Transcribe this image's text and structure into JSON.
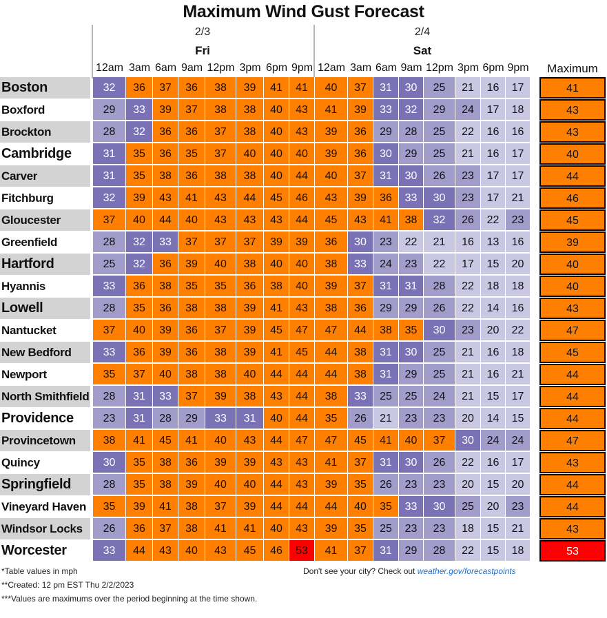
{
  "title": "Maximum Wind Gust Forecast",
  "days": [
    {
      "date": "2/3",
      "dow": "Fri"
    },
    {
      "date": "2/4",
      "dow": "Sat"
    }
  ],
  "hours": [
    "12am",
    "3am",
    "6am",
    "9am",
    "12pm",
    "3pm",
    "6pm",
    "9pm",
    "12am",
    "3am",
    "6am",
    "9am",
    "12pm",
    "3pm",
    "6pm",
    "9pm"
  ],
  "max_header": "Maximum",
  "colors": {
    "orange": "#ff7f00",
    "red": "#ff0000",
    "purple_dark": "#7b72b5",
    "purple_mid": "#a29cca",
    "purple_light": "#cac7e2",
    "city_shade": "#d3d3d3"
  },
  "chart_data": {
    "type": "table",
    "title": "Maximum Wind Gust Forecast",
    "units": "mph",
    "columns": [
      "2/3 12am",
      "2/3 3am",
      "2/3 6am",
      "2/3 9am",
      "2/3 12pm",
      "2/3 3pm",
      "2/3 6pm",
      "2/3 9pm",
      "2/4 12am",
      "2/4 3am",
      "2/4 6am",
      "2/4 9am",
      "2/4 12pm",
      "2/4 3pm",
      "2/4 6pm",
      "2/4 9pm"
    ],
    "rows": [
      {
        "city": "Boston",
        "values": [
          32,
          36,
          37,
          36,
          38,
          39,
          41,
          41,
          40,
          37,
          31,
          30,
          25,
          21,
          16,
          17
        ],
        "max": 41
      },
      {
        "city": "Boxford",
        "values": [
          29,
          33,
          39,
          37,
          38,
          38,
          40,
          43,
          41,
          39,
          33,
          32,
          29,
          24,
          17,
          18
        ],
        "max": 43
      },
      {
        "city": "Brockton",
        "values": [
          28,
          32,
          36,
          36,
          37,
          38,
          40,
          43,
          39,
          36,
          29,
          28,
          25,
          22,
          16,
          16
        ],
        "max": 43
      },
      {
        "city": "Cambridge",
        "values": [
          31,
          35,
          36,
          35,
          37,
          40,
          40,
          40,
          39,
          36,
          30,
          29,
          25,
          21,
          16,
          17
        ],
        "max": 40
      },
      {
        "city": "Carver",
        "values": [
          31,
          35,
          38,
          36,
          38,
          38,
          40,
          44,
          40,
          37,
          31,
          30,
          26,
          23,
          17,
          17
        ],
        "max": 44
      },
      {
        "city": "Fitchburg",
        "values": [
          32,
          39,
          43,
          41,
          43,
          44,
          45,
          46,
          43,
          39,
          36,
          33,
          30,
          23,
          17,
          21
        ],
        "max": 46
      },
      {
        "city": "Gloucester",
        "values": [
          37,
          40,
          44,
          40,
          43,
          43,
          43,
          44,
          45,
          43,
          41,
          38,
          32,
          26,
          22,
          23
        ],
        "max": 45
      },
      {
        "city": "Greenfield",
        "values": [
          28,
          32,
          33,
          37,
          37,
          37,
          39,
          39,
          36,
          30,
          23,
          22,
          21,
          16,
          13,
          16
        ],
        "max": 39
      },
      {
        "city": "Hartford",
        "values": [
          25,
          32,
          36,
          39,
          40,
          38,
          40,
          40,
          38,
          33,
          24,
          23,
          22,
          17,
          15,
          20
        ],
        "max": 40
      },
      {
        "city": "Hyannis",
        "values": [
          33,
          36,
          38,
          35,
          35,
          36,
          38,
          40,
          39,
          37,
          31,
          31,
          28,
          22,
          18,
          18
        ],
        "max": 40
      },
      {
        "city": "Lowell",
        "values": [
          28,
          35,
          36,
          38,
          38,
          39,
          41,
          43,
          38,
          36,
          29,
          29,
          26,
          22,
          14,
          16
        ],
        "max": 43
      },
      {
        "city": "Nantucket",
        "values": [
          37,
          40,
          39,
          36,
          37,
          39,
          45,
          47,
          47,
          44,
          38,
          35,
          30,
          23,
          20,
          22
        ],
        "max": 47
      },
      {
        "city": "New Bedford",
        "values": [
          33,
          36,
          39,
          36,
          38,
          39,
          41,
          45,
          44,
          38,
          31,
          30,
          25,
          21,
          16,
          18
        ],
        "max": 45
      },
      {
        "city": "Newport",
        "values": [
          35,
          37,
          40,
          38,
          38,
          40,
          44,
          44,
          44,
          38,
          31,
          29,
          25,
          21,
          16,
          21
        ],
        "max": 44
      },
      {
        "city": "North Smithfield",
        "values": [
          28,
          31,
          33,
          37,
          39,
          38,
          43,
          44,
          38,
          33,
          25,
          25,
          24,
          21,
          15,
          17
        ],
        "max": 44
      },
      {
        "city": "Providence",
        "values": [
          23,
          31,
          28,
          29,
          33,
          31,
          40,
          44,
          35,
          26,
          21,
          23,
          23,
          20,
          14,
          15
        ],
        "max": 44
      },
      {
        "city": "Provincetown",
        "values": [
          38,
          41,
          45,
          41,
          40,
          43,
          44,
          47,
          47,
          45,
          41,
          40,
          37,
          30,
          24,
          24
        ],
        "max": 47
      },
      {
        "city": "Quincy",
        "values": [
          30,
          35,
          38,
          36,
          39,
          39,
          43,
          43,
          41,
          37,
          31,
          30,
          26,
          22,
          16,
          17
        ],
        "max": 43
      },
      {
        "city": "Springfield",
        "values": [
          28,
          35,
          38,
          39,
          40,
          40,
          44,
          43,
          39,
          35,
          26,
          23,
          23,
          20,
          15,
          20
        ],
        "max": 44
      },
      {
        "city": "Vineyard Haven",
        "values": [
          35,
          39,
          41,
          38,
          37,
          39,
          44,
          44,
          44,
          40,
          35,
          33,
          30,
          25,
          20,
          23
        ],
        "max": 44
      },
      {
        "city": "Windsor Locks",
        "values": [
          26,
          36,
          37,
          38,
          41,
          41,
          40,
          43,
          39,
          35,
          25,
          23,
          23,
          18,
          15,
          21
        ],
        "max": 43
      },
      {
        "city": "Worcester",
        "values": [
          33,
          44,
          43,
          40,
          43,
          45,
          46,
          53,
          41,
          37,
          31,
          29,
          28,
          22,
          15,
          18
        ],
        "max": 53
      }
    ]
  },
  "notes": {
    "units": "*Table values in mph",
    "created": "**Created: 12 pm EST Thu 2/2/2023",
    "maximums": "***Values are maximums over the period beginning at the time shown.",
    "cta_text": "Don't see your city? Check out ",
    "cta_link": "weather.gov/forecastpoints"
  }
}
